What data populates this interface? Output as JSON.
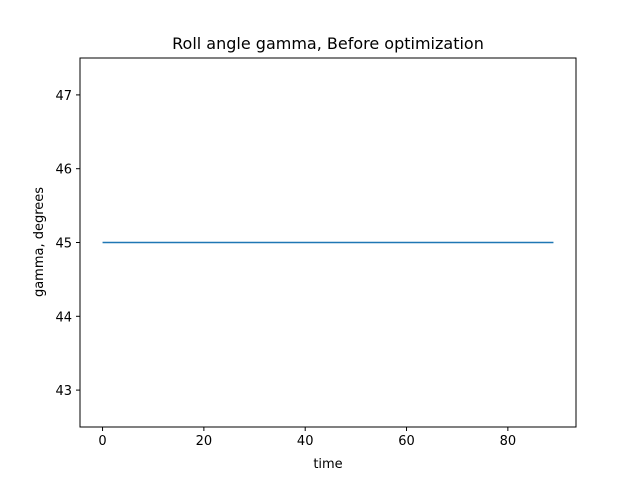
{
  "chart_data": {
    "type": "line",
    "title": "Roll angle gamma, Before optimization",
    "xlabel": "time",
    "ylabel": "gamma, degrees",
    "xlim": [
      -4.45,
      93.45
    ],
    "ylim": [
      42.5,
      47.5
    ],
    "xticks": [
      0,
      20,
      40,
      60,
      80
    ],
    "yticks": [
      43,
      44,
      45,
      46,
      47
    ],
    "grid": false,
    "series": [
      {
        "x": [
          0,
          89
        ],
        "y": [
          45,
          45
        ],
        "color": "#1f77b4"
      }
    ]
  }
}
